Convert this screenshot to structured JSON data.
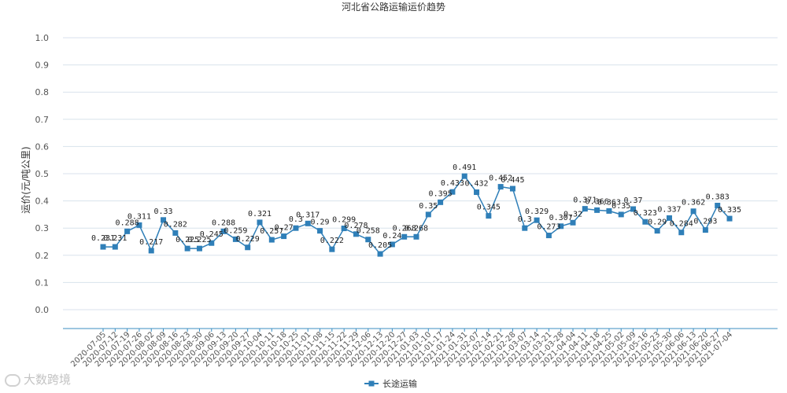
{
  "chart_data": {
    "type": "line",
    "title": "河北省公路运输运价趋势",
    "ylabel": "运价(元/吨公里)",
    "xlabel": "",
    "ylim": [
      0,
      1.0
    ],
    "yticks": [
      "0.0",
      "0.1",
      "0.2",
      "0.3",
      "0.4",
      "0.5",
      "0.6",
      "0.7",
      "0.8",
      "0.9",
      "1.0"
    ],
    "grid": true,
    "legend": "bottom-center",
    "series_color": "#2f7fb8",
    "categories": [
      "2020-07-05",
      "2020-07-12",
      "2020-07-19",
      "2020-07-26",
      "2020-08-02",
      "2020-08-09",
      "2020-08-16",
      "2020-08-23",
      "2020-08-30",
      "2020-09-06",
      "2020-09-13",
      "2020-09-20",
      "2020-09-27",
      "2020-10-04",
      "2020-10-11",
      "2020-10-18",
      "2020-10-25",
      "2020-11-01",
      "2020-11-08",
      "2020-11-15",
      "2020-11-22",
      "2020-11-29",
      "2020-12-06",
      "2020-12-13",
      "2020-12-20",
      "2020-12-27",
      "2021-01-03",
      "2021-01-10",
      "2021-01-17",
      "2021-01-24",
      "2021-01-31",
      "2021-02-07",
      "2021-02-14",
      "2021-02-21",
      "2021-02-28",
      "2021-03-07",
      "2021-03-14",
      "2021-03-21",
      "2021-03-28",
      "2021-04-04",
      "2021-04-11",
      "2021-04-18",
      "2021-04-25",
      "2021-05-02",
      "2021-05-09",
      "2021-05-16",
      "2021-05-23",
      "2021-05-30",
      "2021-06-06",
      "2021-06-13",
      "2021-06-20",
      "2021-06-27",
      "2021-07-04"
    ],
    "series": [
      {
        "name": "长途运输",
        "values": [
          0.231,
          0.231,
          0.288,
          0.311,
          0.217,
          0.33,
          0.282,
          0.225,
          0.225,
          0.245,
          0.288,
          0.259,
          0.229,
          0.321,
          0.257,
          0.27,
          0.3,
          0.317,
          0.29,
          0.222,
          0.299,
          0.278,
          0.258,
          0.205,
          0.24,
          0.268,
          0.268,
          0.35,
          0.395,
          0.433,
          0.491,
          0.432,
          0.345,
          0.452,
          0.445,
          0.3,
          0.329,
          0.273,
          0.307,
          0.32,
          0.371,
          0.366,
          0.363,
          0.35,
          0.37,
          0.323,
          0.29,
          0.337,
          0.284,
          0.362,
          0.293,
          0.383,
          0.335
        ],
        "labels": [
          "0.231",
          "0.231",
          "0.288",
          "0.311",
          "0.217",
          "0.33",
          "0.282",
          "0.225",
          "0.225",
          "0.245",
          "0.288",
          "0.259",
          "0.229",
          "0.321",
          "0.257",
          "0.27",
          "0.3",
          "0.317",
          "0.29",
          "0.222",
          "0.299",
          "0.278",
          "0.258",
          "0.205",
          "0.24",
          "0.268",
          "0.268",
          "0.35",
          "0.395",
          "0.433",
          "0.491",
          "0.432",
          "0.345",
          "0.452",
          "0.445",
          "0.3",
          "0.329",
          "0.273",
          "0.307",
          "0.32",
          "0.371",
          "0.366",
          "0.363",
          "0.35",
          "0.37",
          "0.323",
          "0.29",
          "0.337",
          "0.284",
          "0.362",
          "0.293",
          "0.383",
          "0.335"
        ]
      }
    ]
  },
  "watermark": "大数跨境"
}
